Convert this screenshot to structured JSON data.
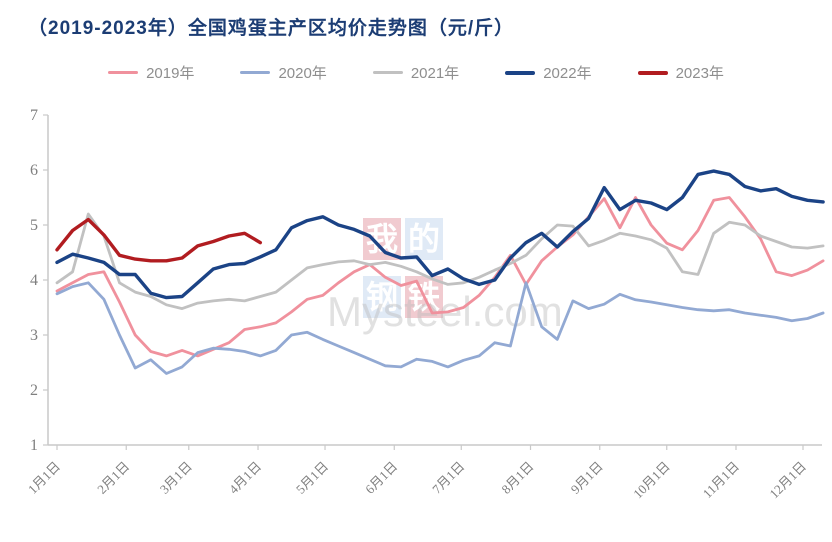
{
  "title": "（2019-2023年）全国鸡蛋主产区均价走势图（元/斤）",
  "colors": {
    "title_text": "#1C3D74",
    "axis_line": "#C9C9C9",
    "tick_text": "#7F7F7F",
    "legend_text": "#8E8E8E",
    "watermark_text": "#BDBDBD"
  },
  "watermark": {
    "blocks": [
      {
        "char": "我",
        "tone": "pink"
      },
      {
        "char": "的",
        "tone": "blue"
      },
      {
        "char": "钢",
        "tone": "blue"
      },
      {
        "char": "铁",
        "tone": "pink"
      }
    ],
    "text": "Mysteel.com"
  },
  "chart_data": {
    "type": "line",
    "title": "（2019-2023年）全国鸡蛋主产区均价走势图（元/斤）",
    "ylabel": "元/斤",
    "ylim": [
      1,
      7
    ],
    "yticks": [
      1,
      2,
      3,
      4,
      5,
      6,
      7
    ],
    "grid": false,
    "legend_position": "top",
    "x_unit": "day-of-year",
    "sample_interval_days": 7,
    "xticks": [
      {
        "label": "1月1日",
        "day": 0
      },
      {
        "label": "2月1日",
        "day": 31
      },
      {
        "label": "3月1日",
        "day": 59
      },
      {
        "label": "4月1日",
        "day": 90
      },
      {
        "label": "5月1日",
        "day": 120
      },
      {
        "label": "6月1日",
        "day": 151
      },
      {
        "label": "7月1日",
        "day": 181
      },
      {
        "label": "8月1日",
        "day": 212
      },
      {
        "label": "9月1日",
        "day": 243
      },
      {
        "label": "10月1日",
        "day": 273
      },
      {
        "label": "11月1日",
        "day": 304
      },
      {
        "label": "12月1日",
        "day": 334
      }
    ],
    "series": [
      {
        "name": "2019年",
        "color": "#F0919D",
        "stroke_width": 2.8,
        "values": [
          3.8,
          3.95,
          4.1,
          4.15,
          3.6,
          3.0,
          2.7,
          2.62,
          2.72,
          2.62,
          2.74,
          2.86,
          3.1,
          3.15,
          3.22,
          3.42,
          3.65,
          3.72,
          3.95,
          4.15,
          4.28,
          4.05,
          3.9,
          3.98,
          3.4,
          3.42,
          3.5,
          3.72,
          4.05,
          4.45,
          3.92,
          4.35,
          4.6,
          4.82,
          5.15,
          5.48,
          4.95,
          5.5,
          5.0,
          4.67,
          4.55,
          4.9,
          5.45,
          5.5,
          5.15,
          4.75,
          4.15,
          4.08,
          4.18,
          4.35
        ]
      },
      {
        "name": "2020年",
        "color": "#92A9D3",
        "stroke_width": 2.8,
        "values": [
          3.75,
          3.88,
          3.95,
          3.65,
          3.0,
          2.4,
          2.55,
          2.3,
          2.42,
          2.68,
          2.76,
          2.74,
          2.7,
          2.62,
          2.72,
          3.0,
          3.05,
          2.92,
          2.8,
          2.68,
          2.56,
          2.44,
          2.42,
          2.56,
          2.52,
          2.42,
          2.54,
          2.62,
          2.86,
          2.8,
          3.95,
          3.15,
          2.92,
          3.62,
          3.48,
          3.56,
          3.74,
          3.64,
          3.6,
          3.55,
          3.5,
          3.46,
          3.44,
          3.46,
          3.4,
          3.36,
          3.32,
          3.26,
          3.3,
          3.4
        ]
      },
      {
        "name": "2021年",
        "color": "#C1C1C1",
        "stroke_width": 2.8,
        "values": [
          3.95,
          4.15,
          5.2,
          4.8,
          3.95,
          3.78,
          3.7,
          3.55,
          3.48,
          3.58,
          3.62,
          3.65,
          3.62,
          3.7,
          3.78,
          4.0,
          4.22,
          4.28,
          4.33,
          4.35,
          4.28,
          4.32,
          4.25,
          4.15,
          4.02,
          3.92,
          3.95,
          4.05,
          4.18,
          4.3,
          4.45,
          4.75,
          5.0,
          4.98,
          4.62,
          4.72,
          4.85,
          4.8,
          4.73,
          4.58,
          4.15,
          4.1,
          4.85,
          5.05,
          5.0,
          4.8,
          4.7,
          4.6,
          4.58,
          4.62
        ]
      },
      {
        "name": "2022年",
        "color": "#1B4386",
        "stroke_width": 3.4,
        "values": [
          4.32,
          4.47,
          4.4,
          4.32,
          4.1,
          4.1,
          3.76,
          3.68,
          3.7,
          3.95,
          4.2,
          4.28,
          4.3,
          4.42,
          4.55,
          4.95,
          5.08,
          5.15,
          5.0,
          4.92,
          4.8,
          4.5,
          4.4,
          4.42,
          4.08,
          4.2,
          4.02,
          3.92,
          4.0,
          4.4,
          4.68,
          4.85,
          4.6,
          4.88,
          5.12,
          5.68,
          5.28,
          5.45,
          5.4,
          5.28,
          5.5,
          5.92,
          5.98,
          5.92,
          5.7,
          5.62,
          5.66,
          5.52,
          5.45,
          5.42
        ]
      },
      {
        "name": "2023年",
        "color": "#B11C20",
        "stroke_width": 3.4,
        "values": [
          4.55,
          4.9,
          5.1,
          4.82,
          4.45,
          4.38,
          4.35,
          4.35,
          4.4,
          4.62,
          4.7,
          4.8,
          4.85,
          4.68
        ]
      }
    ]
  }
}
